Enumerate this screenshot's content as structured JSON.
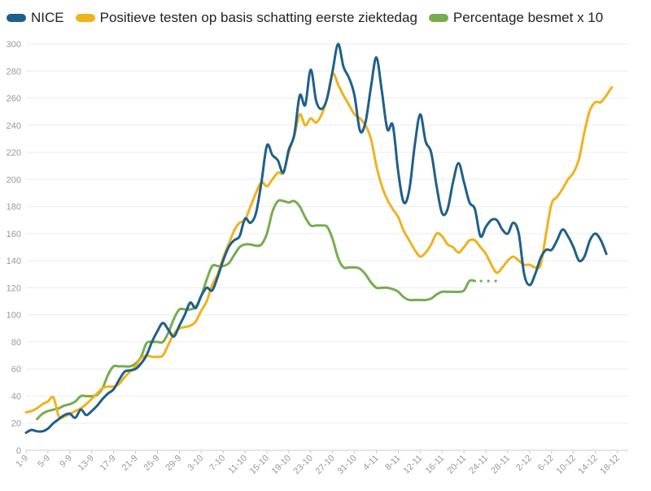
{
  "chart_data": {
    "type": "line",
    "title": "",
    "xlabel": "",
    "ylabel": "",
    "ylim": [
      0,
      300
    ],
    "yticks": [
      0,
      20,
      40,
      60,
      80,
      100,
      120,
      140,
      160,
      180,
      200,
      220,
      240,
      260,
      280,
      300
    ],
    "x_start": "1-9",
    "x_end": "20-12",
    "x_tick_labels": [
      "1-9",
      "5-9",
      "9-9",
      "13-9",
      "17-9",
      "21-9",
      "25-9",
      "29-9",
      "3-10",
      "7-10",
      "11-10",
      "15-10",
      "19-10",
      "23-10",
      "27-10",
      "31-10",
      "4-11",
      "8-11",
      "12-11",
      "16-11",
      "20-11",
      "24-11",
      "28-11",
      "2-12",
      "6-12",
      "10-12",
      "14-12",
      "18-12"
    ],
    "grid": true,
    "legend_position": "top",
    "series": [
      {
        "name": "NICE",
        "color": "#1f5f8b",
        "points": [
          [
            0,
            13
          ],
          [
            1,
            15
          ],
          [
            2,
            14
          ],
          [
            3,
            14
          ],
          [
            4,
            16
          ],
          [
            5,
            20
          ],
          [
            6,
            23
          ],
          [
            7,
            26
          ],
          [
            8,
            27
          ],
          [
            9,
            24
          ],
          [
            10,
            30
          ],
          [
            11,
            26
          ],
          [
            12,
            29
          ],
          [
            13,
            33
          ],
          [
            14,
            38
          ],
          [
            15,
            42
          ],
          [
            16,
            45
          ],
          [
            17,
            52
          ],
          [
            18,
            58
          ],
          [
            19,
            59
          ],
          [
            20,
            60
          ],
          [
            21,
            64
          ],
          [
            22,
            70
          ],
          [
            23,
            80
          ],
          [
            24,
            88
          ],
          [
            25,
            94
          ],
          [
            26,
            89
          ],
          [
            27,
            84
          ],
          [
            28,
            92
          ],
          [
            29,
            100
          ],
          [
            30,
            109
          ],
          [
            31,
            105
          ],
          [
            32,
            114
          ],
          [
            33,
            120
          ],
          [
            34,
            118
          ],
          [
            35,
            128
          ],
          [
            36,
            140
          ],
          [
            37,
            150
          ],
          [
            38,
            155
          ],
          [
            39,
            158
          ],
          [
            40,
            171
          ],
          [
            41,
            168
          ],
          [
            42,
            175
          ],
          [
            43,
            198
          ],
          [
            44,
            225
          ],
          [
            45,
            218
          ],
          [
            46,
            214
          ],
          [
            47,
            205
          ],
          [
            48,
            222
          ],
          [
            49,
            233
          ],
          [
            50,
            262
          ],
          [
            51,
            255
          ],
          [
            52,
            281
          ],
          [
            53,
            258
          ],
          [
            54,
            252
          ],
          [
            55,
            260
          ],
          [
            56,
            280
          ],
          [
            57,
            300
          ],
          [
            58,
            283
          ],
          [
            59,
            275
          ],
          [
            60,
            262
          ],
          [
            61,
            236
          ],
          [
            62,
            242
          ],
          [
            63,
            268
          ],
          [
            64,
            290
          ],
          [
            65,
            265
          ],
          [
            66,
            237
          ],
          [
            67,
            240
          ],
          [
            68,
            205
          ],
          [
            69,
            183
          ],
          [
            70,
            192
          ],
          [
            71,
            225
          ],
          [
            72,
            248
          ],
          [
            73,
            228
          ],
          [
            74,
            220
          ],
          [
            75,
            195
          ],
          [
            76,
            175
          ],
          [
            77,
            178
          ],
          [
            78,
            198
          ],
          [
            79,
            212
          ],
          [
            80,
            198
          ],
          [
            81,
            183
          ],
          [
            82,
            178
          ],
          [
            83,
            158
          ],
          [
            84,
            165
          ],
          [
            85,
            170
          ],
          [
            86,
            170
          ],
          [
            87,
            163
          ],
          [
            88,
            160
          ],
          [
            89,
            168
          ],
          [
            90,
            160
          ],
          [
            91,
            130
          ],
          [
            92,
            122
          ],
          [
            93,
            130
          ],
          [
            94,
            142
          ],
          [
            95,
            148
          ],
          [
            96,
            148
          ],
          [
            97,
            155
          ],
          [
            98,
            163
          ],
          [
            99,
            158
          ],
          [
            100,
            150
          ],
          [
            101,
            140
          ],
          [
            102,
            143
          ],
          [
            103,
            155
          ],
          [
            104,
            160
          ],
          [
            105,
            155
          ],
          [
            106,
            145
          ]
        ]
      },
      {
        "name": "Positieve testen op basis schatting eerste ziektedag",
        "color": "#f0b21d",
        "points": [
          [
            0,
            28
          ],
          [
            1,
            29
          ],
          [
            2,
            31
          ],
          [
            3,
            34
          ],
          [
            4,
            36
          ],
          [
            5,
            39
          ],
          [
            6,
            25
          ],
          [
            7,
            25
          ],
          [
            8,
            27
          ],
          [
            9,
            29
          ],
          [
            10,
            31
          ],
          [
            11,
            34
          ],
          [
            12,
            38
          ],
          [
            13,
            42
          ],
          [
            14,
            46
          ],
          [
            15,
            47
          ],
          [
            16,
            47
          ],
          [
            17,
            49
          ],
          [
            18,
            54
          ],
          [
            19,
            58
          ],
          [
            20,
            62
          ],
          [
            21,
            68
          ],
          [
            22,
            70
          ],
          [
            23,
            69
          ],
          [
            24,
            69
          ],
          [
            25,
            70
          ],
          [
            26,
            78
          ],
          [
            27,
            86
          ],
          [
            28,
            90
          ],
          [
            29,
            91
          ],
          [
            30,
            92
          ],
          [
            31,
            95
          ],
          [
            32,
            103
          ],
          [
            33,
            110
          ],
          [
            34,
            122
          ],
          [
            35,
            130
          ],
          [
            36,
            142
          ],
          [
            37,
            152
          ],
          [
            38,
            162
          ],
          [
            39,
            168
          ],
          [
            40,
            170
          ],
          [
            41,
            180
          ],
          [
            42,
            190
          ],
          [
            43,
            198
          ],
          [
            44,
            195
          ],
          [
            45,
            200
          ],
          [
            46,
            205
          ],
          [
            47,
            205
          ],
          [
            48,
            220
          ],
          [
            49,
            232
          ],
          [
            50,
            248
          ],
          [
            51,
            240
          ],
          [
            52,
            245
          ],
          [
            53,
            242
          ],
          [
            54,
            248
          ],
          [
            55,
            260
          ],
          [
            56,
            278
          ],
          [
            57,
            270
          ],
          [
            58,
            262
          ],
          [
            59,
            255
          ],
          [
            60,
            248
          ],
          [
            61,
            245
          ],
          [
            62,
            240
          ],
          [
            63,
            230
          ],
          [
            64,
            210
          ],
          [
            65,
            195
          ],
          [
            66,
            185
          ],
          [
            67,
            178
          ],
          [
            68,
            172
          ],
          [
            69,
            162
          ],
          [
            70,
            155
          ],
          [
            71,
            148
          ],
          [
            72,
            143
          ],
          [
            73,
            146
          ],
          [
            74,
            152
          ],
          [
            75,
            160
          ],
          [
            76,
            158
          ],
          [
            77,
            152
          ],
          [
            78,
            150
          ],
          [
            79,
            146
          ],
          [
            80,
            150
          ],
          [
            81,
            155
          ],
          [
            82,
            155
          ],
          [
            83,
            150
          ],
          [
            84,
            145
          ],
          [
            85,
            137
          ],
          [
            86,
            131
          ],
          [
            87,
            135
          ],
          [
            88,
            140
          ],
          [
            89,
            143
          ],
          [
            90,
            140
          ],
          [
            91,
            137
          ],
          [
            92,
            137
          ],
          [
            93,
            135
          ],
          [
            94,
            137
          ],
          [
            95,
            160
          ],
          [
            96,
            182
          ],
          [
            97,
            187
          ],
          [
            98,
            193
          ],
          [
            99,
            200
          ],
          [
            100,
            205
          ],
          [
            101,
            215
          ],
          [
            102,
            235
          ],
          [
            103,
            251
          ],
          [
            104,
            257
          ],
          [
            105,
            257
          ],
          [
            106,
            262
          ],
          [
            107,
            268
          ]
        ]
      },
      {
        "name": "Percentage besmet x 10",
        "color": "#76ad4f",
        "points": [
          [
            2,
            23
          ],
          [
            3,
            27
          ],
          [
            4,
            29
          ],
          [
            5,
            30
          ],
          [
            6,
            31
          ],
          [
            7,
            33
          ],
          [
            8,
            34
          ],
          [
            9,
            36
          ],
          [
            10,
            40
          ],
          [
            11,
            40
          ],
          [
            12,
            40
          ],
          [
            13,
            41
          ],
          [
            14,
            46
          ],
          [
            15,
            56
          ],
          [
            16,
            62
          ],
          [
            17,
            62
          ],
          [
            18,
            62
          ],
          [
            19,
            62
          ],
          [
            20,
            64
          ],
          [
            21,
            69
          ],
          [
            22,
            79
          ],
          [
            23,
            80
          ],
          [
            24,
            80
          ],
          [
            25,
            80
          ],
          [
            26,
            87
          ],
          [
            27,
            97
          ],
          [
            28,
            104
          ],
          [
            29,
            104
          ],
          [
            30,
            104
          ],
          [
            31,
            106
          ],
          [
            32,
            114
          ],
          [
            33,
            126
          ],
          [
            34,
            136
          ],
          [
            35,
            136
          ],
          [
            36,
            136
          ],
          [
            37,
            138
          ],
          [
            38,
            144
          ],
          [
            39,
            150
          ],
          [
            40,
            152
          ],
          [
            41,
            152
          ],
          [
            42,
            151
          ],
          [
            43,
            152
          ],
          [
            44,
            160
          ],
          [
            45,
            176
          ],
          [
            46,
            184
          ],
          [
            47,
            184
          ],
          [
            48,
            183
          ],
          [
            49,
            184
          ],
          [
            50,
            180
          ],
          [
            51,
            172
          ],
          [
            52,
            166
          ],
          [
            53,
            166
          ],
          [
            54,
            166
          ],
          [
            55,
            165
          ],
          [
            56,
            156
          ],
          [
            57,
            142
          ],
          [
            58,
            135
          ],
          [
            59,
            135
          ],
          [
            60,
            135
          ],
          [
            61,
            134
          ],
          [
            62,
            130
          ],
          [
            63,
            124
          ],
          [
            64,
            120
          ],
          [
            65,
            120
          ],
          [
            66,
            120
          ],
          [
            67,
            119
          ],
          [
            68,
            117
          ],
          [
            69,
            113
          ],
          [
            70,
            111
          ],
          [
            71,
            111
          ],
          [
            72,
            111
          ],
          [
            73,
            111
          ],
          [
            74,
            112
          ],
          [
            75,
            115
          ],
          [
            76,
            117
          ],
          [
            77,
            117
          ],
          [
            78,
            117
          ],
          [
            79,
            117
          ],
          [
            80,
            118
          ],
          [
            81,
            125
          ],
          [
            82,
            125
          ]
        ],
        "dotted_extension": [
          [
            82,
            125
          ],
          [
            86,
            125
          ]
        ]
      }
    ]
  }
}
